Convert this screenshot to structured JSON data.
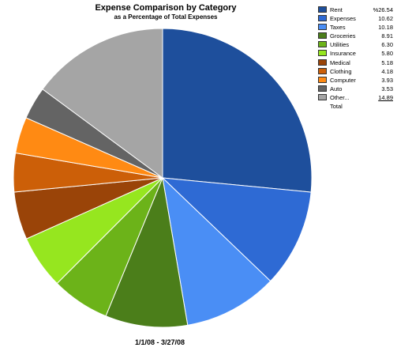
{
  "chart_data": {
    "type": "pie",
    "title": "Expense Comparison by Category",
    "subtitle": "as a Percentage of Total Expenses",
    "date_range": "1/1/08 - 3/27/08",
    "unit_prefix": "%",
    "categories": [
      "Rent",
      "Expenses",
      "Taxes",
      "Groceries",
      "Utilities",
      "Insurance",
      "Medical",
      "Clothing",
      "Computer",
      "Auto",
      "Other..."
    ],
    "values": [
      26.54,
      10.62,
      10.18,
      8.91,
      6.3,
      5.8,
      5.18,
      4.18,
      3.93,
      3.53,
      14.89
    ],
    "value_labels": [
      "%26.54",
      "10.62",
      "10.18",
      "8.91",
      "6.30",
      "5.80",
      "5.18",
      "4.18",
      "3.93",
      "3.53",
      "14.89"
    ],
    "colors": [
      "#1e4f9c",
      "#2e6ad4",
      "#4a8ef5",
      "#4b7e1a",
      "#6cb319",
      "#96e61f",
      "#9a4408",
      "#cc5f08",
      "#ff8a13",
      "#646464",
      "#a5a5a5"
    ],
    "total_label": "Total",
    "legend_placement": "top-right"
  }
}
